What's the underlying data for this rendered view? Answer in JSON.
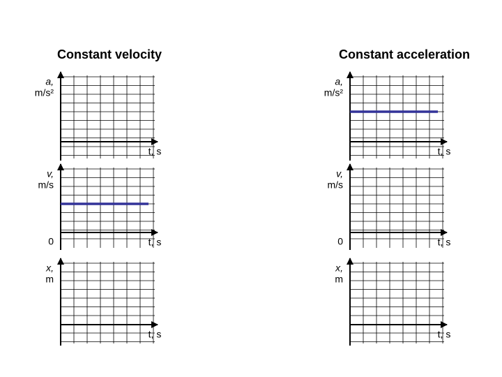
{
  "columns": [
    {
      "title": "Constant velocity",
      "graphs": [
        {
          "y_symbol": "a,",
          "y_unit": "m/s²",
          "x_label": "t, s"
        },
        {
          "y_symbol": "v,",
          "y_unit": "m/s",
          "origin": "0",
          "x_label": "t, s"
        },
        {
          "y_symbol": "x,",
          "y_unit": "m",
          "x_label": "t, s"
        }
      ]
    },
    {
      "title": "Constant acceleration",
      "graphs": [
        {
          "y_symbol": "a,",
          "y_unit": "m/s²",
          "x_label": "t, s"
        },
        {
          "y_symbol": "v,",
          "y_unit": "m/s",
          "origin": "0",
          "x_label": "t, s"
        },
        {
          "y_symbol": "x,",
          "y_unit": "m",
          "x_label": "t, s"
        }
      ]
    }
  ]
}
